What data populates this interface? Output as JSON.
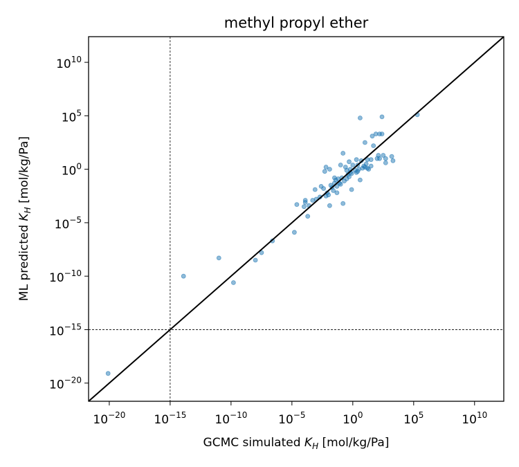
{
  "chart_data": {
    "type": "scatter",
    "title": "methyl propyl ether",
    "xlabel_prefix": "GCMC simulated ",
    "xlabel_suffix": " [mol/kg/Pa]",
    "ylabel_prefix": "ML predicted ",
    "ylabel_suffix": " [mol/kg/Pa]",
    "symbol_main": "K",
    "symbol_sub": "H",
    "scale": "log",
    "xlim_exp": [
      -21.7,
      12.4
    ],
    "ylim_exp": [
      -21.7,
      12.4
    ],
    "tick_base": "10",
    "x_ticks": [
      "−20",
      "−15",
      "−10",
      "−5",
      "0",
      "5",
      "10"
    ],
    "y_ticks": [
      "−20",
      "−15",
      "−10",
      "−5",
      "0",
      "5",
      "10"
    ],
    "marker_color": "#1f77b4",
    "reference_line": "y = x",
    "threshold_lines_exp": {
      "x": -15,
      "y": -15
    },
    "grid": false,
    "points_log10": [
      [
        -20.1,
        -19.1
      ],
      [
        -13.9,
        -10.0
      ],
      [
        -11.0,
        -8.3
      ],
      [
        -9.8,
        -10.6
      ],
      [
        -8.0,
        -8.5
      ],
      [
        -7.5,
        -7.8
      ],
      [
        -6.6,
        -6.7
      ],
      [
        -4.8,
        -5.9
      ],
      [
        -4.6,
        -3.3
      ],
      [
        -4.0,
        -3.5
      ],
      [
        -3.9,
        -3.1
      ],
      [
        -3.7,
        -4.4
      ],
      [
        -3.6,
        -3.4
      ],
      [
        -3.3,
        -2.9
      ],
      [
        -3.1,
        -1.9
      ],
      [
        -3.0,
        -2.8
      ],
      [
        -2.7,
        -2.6
      ],
      [
        -2.4,
        -1.8
      ],
      [
        -2.2,
        -2.5
      ],
      [
        -2.1,
        -2.2
      ],
      [
        -2.3,
        -0.2
      ],
      [
        -2.2,
        0.2
      ],
      [
        -2.0,
        -2.4
      ],
      [
        -1.9,
        -3.4
      ],
      [
        -1.7,
        -1.7
      ],
      [
        -1.8,
        -1.5
      ],
      [
        -1.6,
        -2.0
      ],
      [
        -1.5,
        -1.3
      ],
      [
        -1.4,
        -1.0
      ],
      [
        -1.3,
        -1.6
      ],
      [
        -1.2,
        -0.9
      ],
      [
        -1.1,
        -1.3
      ],
      [
        -1.0,
        -1.4
      ],
      [
        -0.9,
        -0.8
      ],
      [
        -0.8,
        -3.2
      ],
      [
        -0.7,
        -1.1
      ],
      [
        -0.6,
        0.2
      ],
      [
        -0.5,
        -0.9
      ],
      [
        -0.4,
        -0.5
      ],
      [
        -0.3,
        -0.7
      ],
      [
        -0.2,
        -0.3
      ],
      [
        -0.2,
        0.0
      ],
      [
        -0.1,
        -0.4
      ],
      [
        0.0,
        0.4
      ],
      [
        -0.1,
        -1.9
      ],
      [
        0.2,
        -0.1
      ],
      [
        0.3,
        -0.3
      ],
      [
        0.4,
        -0.2
      ],
      [
        0.5,
        0.0
      ],
      [
        0.6,
        -1.0
      ],
      [
        0.7,
        0.8
      ],
      [
        0.8,
        0.1
      ],
      [
        0.9,
        0.3
      ],
      [
        1.0,
        0.2
      ],
      [
        1.1,
        0.5
      ],
      [
        1.2,
        0.1
      ],
      [
        1.3,
        0.0
      ],
      [
        1.5,
        0.3
      ],
      [
        1.7,
        2.2
      ],
      [
        1.9,
        3.3
      ],
      [
        2.1,
        1.3
      ],
      [
        2.2,
        1.0
      ],
      [
        2.5,
        1.3
      ],
      [
        2.7,
        1.0
      ],
      [
        1.6,
        3.1
      ],
      [
        2.0,
        1.0
      ],
      [
        -1.5,
        -0.8
      ],
      [
        -2.6,
        -1.6
      ],
      [
        -0.8,
        1.5
      ],
      [
        -1.9,
        0.0
      ],
      [
        -1.0,
        0.4
      ],
      [
        -0.5,
        -0.1
      ],
      [
        0.3,
        0.9
      ],
      [
        1.2,
        0.9
      ],
      [
        2.2,
        3.3
      ],
      [
        2.4,
        3.3
      ],
      [
        2.7,
        0.6
      ],
      [
        3.3,
        0.8
      ],
      [
        0.6,
        4.8
      ],
      [
        2.4,
        4.9
      ],
      [
        5.3,
        5.1
      ],
      [
        3.2,
        1.2
      ],
      [
        0.4,
        0.4
      ],
      [
        -0.3,
        0.7
      ],
      [
        -3.9,
        -2.9
      ],
      [
        1.0,
        2.5
      ],
      [
        1.5,
        0.9
      ],
      [
        -1.3,
        -2.2
      ]
    ]
  }
}
